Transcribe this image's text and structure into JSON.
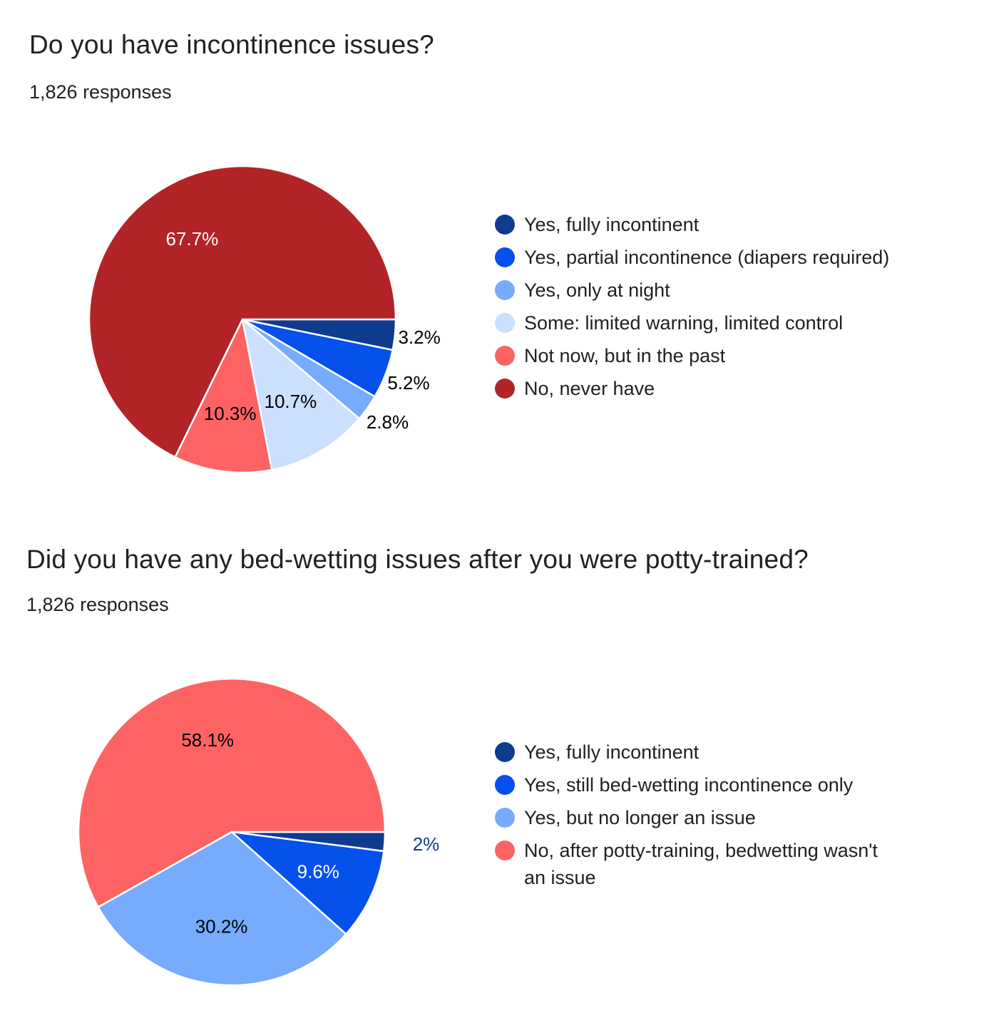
{
  "chart_data": [
    {
      "type": "pie",
      "title": "Do you have incontinence issues?",
      "subtitle": "1,826 responses",
      "legend_position": "right",
      "slices": [
        {
          "label": "Yes, fully incontinent",
          "value": 3.2,
          "display": "3.2%",
          "color": "#0f3b8f",
          "label_color": "#000000",
          "label_outside": true
        },
        {
          "label": "Yes, partial incontinence (diapers required)",
          "value": 5.2,
          "display": "5.2%",
          "color": "#0650ec",
          "label_color": "#000000",
          "label_outside": true
        },
        {
          "label": "Yes, only at night",
          "value": 2.8,
          "display": "2.8%",
          "color": "#77abfe",
          "label_color": "#000000",
          "label_outside": true
        },
        {
          "label": "Some: limited warning, limited control",
          "value": 10.7,
          "display": "10.7%",
          "color": "#cbdfff",
          "label_color": "#000000",
          "label_outside": false
        },
        {
          "label": "Not now, but in the past",
          "value": 10.3,
          "display": "10.3%",
          "color": "#fe6363",
          "label_color": "#000000",
          "label_outside": false
        },
        {
          "label": "No, never have",
          "value": 67.7,
          "display": "67.7%",
          "color": "#b32427",
          "label_color": "#ffffff",
          "label_outside": false
        }
      ]
    },
    {
      "type": "pie",
      "title": "Did you have any bed-wetting issues after you were potty-trained?",
      "subtitle": "1,826 responses",
      "legend_position": "right",
      "slices": [
        {
          "label": "Yes, fully incontinent",
          "value": 2.0,
          "display": "2%",
          "color": "#0f3b8f",
          "label_color": "#0f3b8f",
          "label_outside": true
        },
        {
          "label": "Yes, still bed-wetting incontinence only",
          "value": 9.6,
          "display": "9.6%",
          "color": "#0650ec",
          "label_color": "#ffffff",
          "label_outside": false
        },
        {
          "label": "Yes, but no longer an issue",
          "value": 30.2,
          "display": "30.2%",
          "color": "#77abfe",
          "label_color": "#000000",
          "label_outside": false
        },
        {
          "label": "No, after potty-training, bedwetting wasn't an issue",
          "value": 58.1,
          "display": "58.1%",
          "color": "#fe6363",
          "label_color": "#000000",
          "label_outside": false
        }
      ]
    }
  ]
}
